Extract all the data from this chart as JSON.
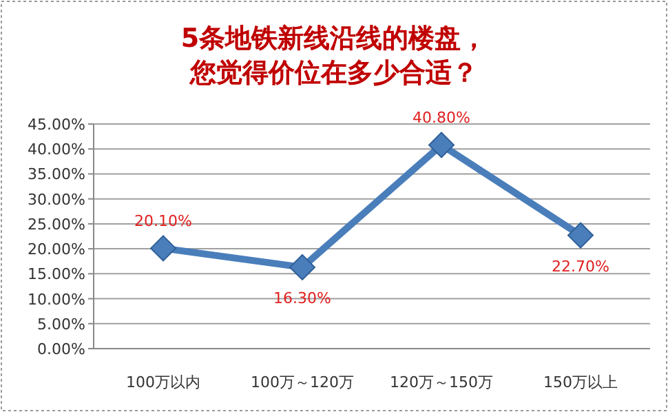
{
  "chart_data": {
    "type": "line",
    "title": "5条地铁新线沿线的楼盘，您觉得价位在多少合适？",
    "categories": [
      "100万以内",
      "100万～120万",
      "120万～150万",
      "150万以上"
    ],
    "series": [
      {
        "color": "#4a7ebb",
        "values": [
          20.1,
          16.3,
          40.8,
          22.7
        ],
        "value_labels": [
          "20.10%",
          "16.30%",
          "40.80%",
          "22.70%"
        ]
      }
    ],
    "ylim": [
      0,
      45
    ],
    "yticks": [
      {
        "value": 0,
        "label": "0.00%"
      },
      {
        "value": 5,
        "label": "5.00%"
      },
      {
        "value": 10,
        "label": "10.00%"
      },
      {
        "value": 15,
        "label": "15.00%"
      },
      {
        "value": 20,
        "label": "20.00%"
      },
      {
        "value": 25,
        "label": "25.00%"
      },
      {
        "value": 30,
        "label": "30.00%"
      },
      {
        "value": 35,
        "label": "35.00%"
      },
      {
        "value": 40,
        "label": "40.00%"
      },
      {
        "value": 45,
        "label": "45.00%"
      }
    ],
    "grid": "y",
    "marker": "diamond"
  }
}
